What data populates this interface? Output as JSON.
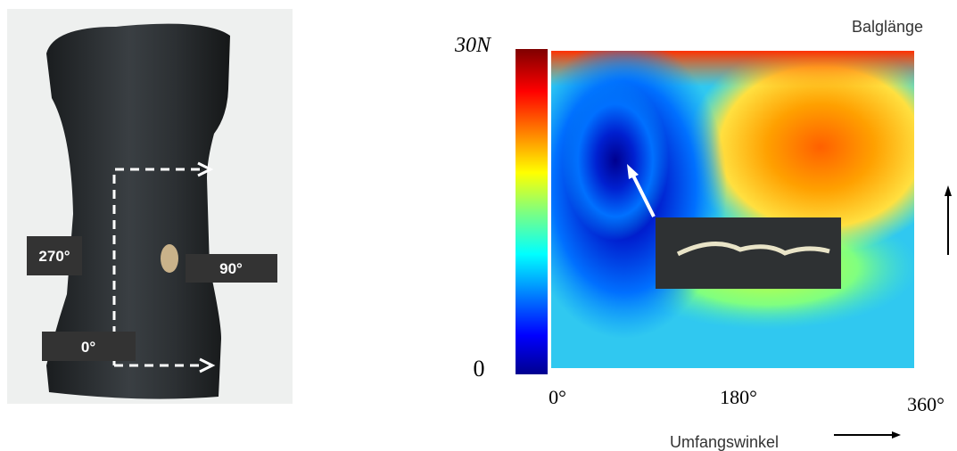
{
  "photo": {
    "labels": [
      "270°",
      "90°",
      "0°"
    ]
  },
  "plot": {
    "y_top": "30N",
    "y_bottom": "0",
    "x_labels": [
      "0°",
      "180°",
      "360°"
    ],
    "y_axis_title": "Balglänge",
    "x_axis_title": "Umfangswinkel"
  }
}
